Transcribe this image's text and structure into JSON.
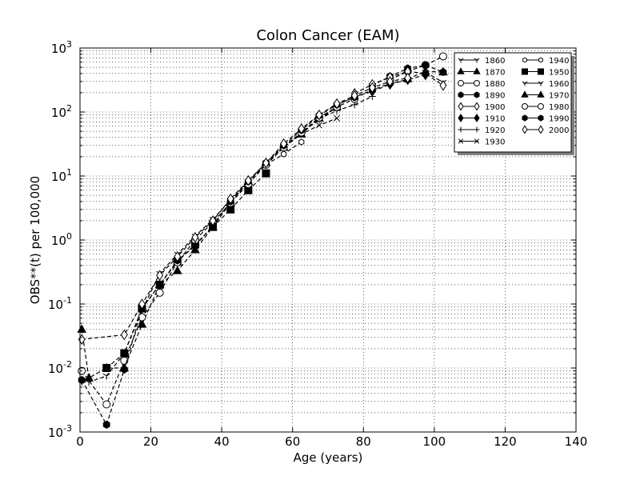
{
  "chart_data": {
    "type": "line",
    "title": "Colon Cancer (EAM)",
    "xlabel": "Age (years)",
    "ylabel": "OBS**(t) per 100,000",
    "xlim": [
      0,
      140
    ],
    "ylim": [
      0.001,
      1000
    ],
    "yscale": "log",
    "x_ticks": [
      0,
      20,
      40,
      60,
      80,
      100,
      120,
      140
    ],
    "y_ticks": [
      {
        "value": 0.001,
        "base": "10",
        "exp": "-3"
      },
      {
        "value": 0.01,
        "base": "10",
        "exp": "-2"
      },
      {
        "value": 0.1,
        "base": "10",
        "exp": "-1"
      },
      {
        "value": 1,
        "base": "10",
        "exp": "0"
      },
      {
        "value": 10,
        "base": "10",
        "exp": "1"
      },
      {
        "value": 100,
        "base": "10",
        "exp": "2"
      },
      {
        "value": 1000,
        "base": "10",
        "exp": "3"
      }
    ],
    "grid": true,
    "legend_position": "top-right",
    "series": [
      {
        "name": "1860",
        "marker": "tri_down",
        "fill": "none",
        "x": [
          97.5,
          102.5
        ],
        "y": [
          420,
          290
        ]
      },
      {
        "name": "1870",
        "marker": "triangle",
        "fill": "black",
        "x": [
          92.5,
          97.5,
          102.5
        ],
        "y": [
          330,
          430,
          420
        ]
      },
      {
        "name": "1880",
        "marker": "circle",
        "fill": "white",
        "x": [
          87.5,
          92.5,
          97.5,
          102.5
        ],
        "y": [
          320,
          430,
          540,
          740
        ]
      },
      {
        "name": "1890",
        "marker": "hexagon",
        "fill": "black",
        "x": [
          82.5,
          87.5,
          92.5,
          97.5,
          102.5
        ],
        "y": [
          260,
          360,
          480,
          540,
          420
        ]
      },
      {
        "name": "1900",
        "marker": "diamond",
        "fill": "white",
        "x": [
          77.5,
          82.5,
          87.5,
          92.5,
          97.5,
          102.5
        ],
        "y": [
          195,
          270,
          350,
          430,
          400,
          260
        ]
      },
      {
        "name": "1910",
        "marker": "diamond",
        "fill": "black",
        "x": [
          72.5,
          77.5,
          82.5,
          87.5,
          92.5,
          97.5
        ],
        "y": [
          130,
          170,
          210,
          270,
          320,
          380
        ]
      },
      {
        "name": "1920",
        "marker": "plus",
        "fill": "none",
        "x": [
          67.5,
          72.5,
          77.5,
          82.5
        ],
        "y": [
          78,
          105,
          130,
          175
        ]
      },
      {
        "name": "1930",
        "marker": "x",
        "fill": "none",
        "x": [
          57.5,
          62.5,
          67.5,
          72.5
        ],
        "y": [
          30,
          45,
          62,
          80
        ]
      },
      {
        "name": "1940",
        "marker": "hexagon_small",
        "fill": "white",
        "x": [
          52.5,
          57.5,
          62.5
        ],
        "y": [
          15,
          22,
          34
        ]
      },
      {
        "name": "1950",
        "marker": "square",
        "fill": "black",
        "x": [
          7.5,
          12.5,
          17.5,
          22.5,
          27.5,
          32.5,
          37.5,
          42.5,
          47.5,
          52.5
        ],
        "y": [
          0.01,
          0.017,
          0.085,
          0.2,
          0.46,
          0.85,
          1.6,
          3.0,
          6.0,
          11
        ]
      },
      {
        "name": "1960",
        "marker": "tri_down",
        "fill": "none",
        "x": [
          0.5,
          2.5,
          7.5,
          12.5,
          17.5,
          22.5,
          27.5,
          32.5,
          37.5,
          42.5,
          47.5,
          52.5,
          57.5,
          62.5,
          67.5,
          72.5
        ],
        "y": [
          0.006,
          0.006,
          0.0075,
          0.017,
          0.08,
          0.3,
          0.6,
          1.15,
          2.1,
          4.2,
          8.2,
          15,
          28,
          48,
          75,
          120
        ]
      },
      {
        "name": "1970",
        "marker": "triangle",
        "fill": "black",
        "x": [
          0.5,
          2.5,
          7.5,
          12.5,
          17.5,
          22.5,
          27.5,
          32.5,
          37.5,
          42.5,
          47.5,
          52.5,
          57.5,
          62.5,
          67.5,
          72.5
        ],
        "y": [
          0.04,
          0.007,
          0.01,
          0.01,
          0.048,
          0.2,
          0.33,
          0.7,
          1.6,
          3.8,
          8.2,
          16,
          28,
          45,
          80,
          120
        ]
      },
      {
        "name": "1980",
        "marker": "circle",
        "fill": "white",
        "x": [
          0.5,
          7.5,
          12.5,
          17.5,
          22.5,
          27.5,
          32.5,
          37.5,
          42.5,
          47.5,
          52.5,
          57.5,
          62.5,
          67.5,
          72.5,
          77.5
        ],
        "y": [
          0.009,
          0.0027,
          0.013,
          0.062,
          0.15,
          0.45,
          1.0,
          1.9,
          3.8,
          7.5,
          15,
          28,
          48,
          82,
          120,
          160
        ]
      },
      {
        "name": "1990",
        "marker": "hexagon",
        "fill": "black",
        "x": [
          0.5,
          7.5,
          12.5,
          17.5,
          22.5,
          27.5,
          32.5,
          37.5,
          42.5,
          47.5,
          52.5,
          57.5,
          62.5,
          67.5,
          72.5,
          77.5,
          82.5,
          87.5,
          92.5
        ],
        "y": [
          0.0065,
          0.0013,
          0.0095,
          0.085,
          0.2,
          0.48,
          0.8,
          1.7,
          4.0,
          8.2,
          16,
          30,
          52,
          88,
          130,
          170,
          220,
          280,
          320
        ]
      },
      {
        "name": "2000",
        "marker": "diamond",
        "fill": "white",
        "x": [
          0.5,
          12.5,
          17.5,
          22.5,
          27.5,
          32.5,
          37.5,
          42.5,
          47.5,
          52.5,
          57.5,
          62.5,
          67.5,
          72.5,
          77.5,
          82.5,
          87.5,
          92.5
        ],
        "y": [
          0.028,
          0.033,
          0.1,
          0.28,
          0.55,
          1.1,
          2.0,
          4.4,
          8.5,
          16,
          32,
          55,
          90,
          135,
          180,
          240,
          300,
          340
        ]
      }
    ]
  }
}
